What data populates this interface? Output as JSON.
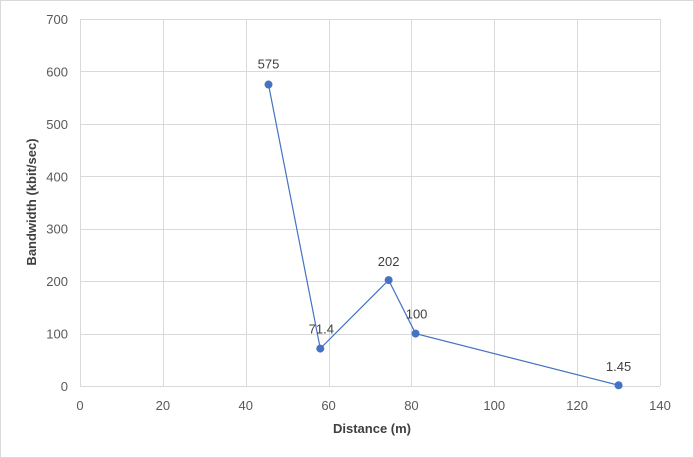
{
  "chart_data": {
    "type": "scatter",
    "title": "",
    "xlabel": "Distance (m)",
    "ylabel": "Bandwidth (kbit/sec)",
    "xlim": [
      0,
      140
    ],
    "ylim": [
      0,
      700
    ],
    "x_ticks": [
      0,
      20,
      40,
      60,
      80,
      100,
      120,
      140
    ],
    "y_ticks": [
      0,
      100,
      200,
      300,
      400,
      500,
      600,
      700
    ],
    "grid": true,
    "legend": "none",
    "series": [
      {
        "color": "#4472c4",
        "points": [
          {
            "x": 45.5,
            "y": 575,
            "label": "575"
          },
          {
            "x": 58,
            "y": 71.4,
            "label": "71.4"
          },
          {
            "x": 74.5,
            "y": 202,
            "label": "202"
          },
          {
            "x": 81,
            "y": 100,
            "label": "100"
          },
          {
            "x": 130,
            "y": 1.45,
            "label": "1.45"
          }
        ]
      }
    ]
  }
}
